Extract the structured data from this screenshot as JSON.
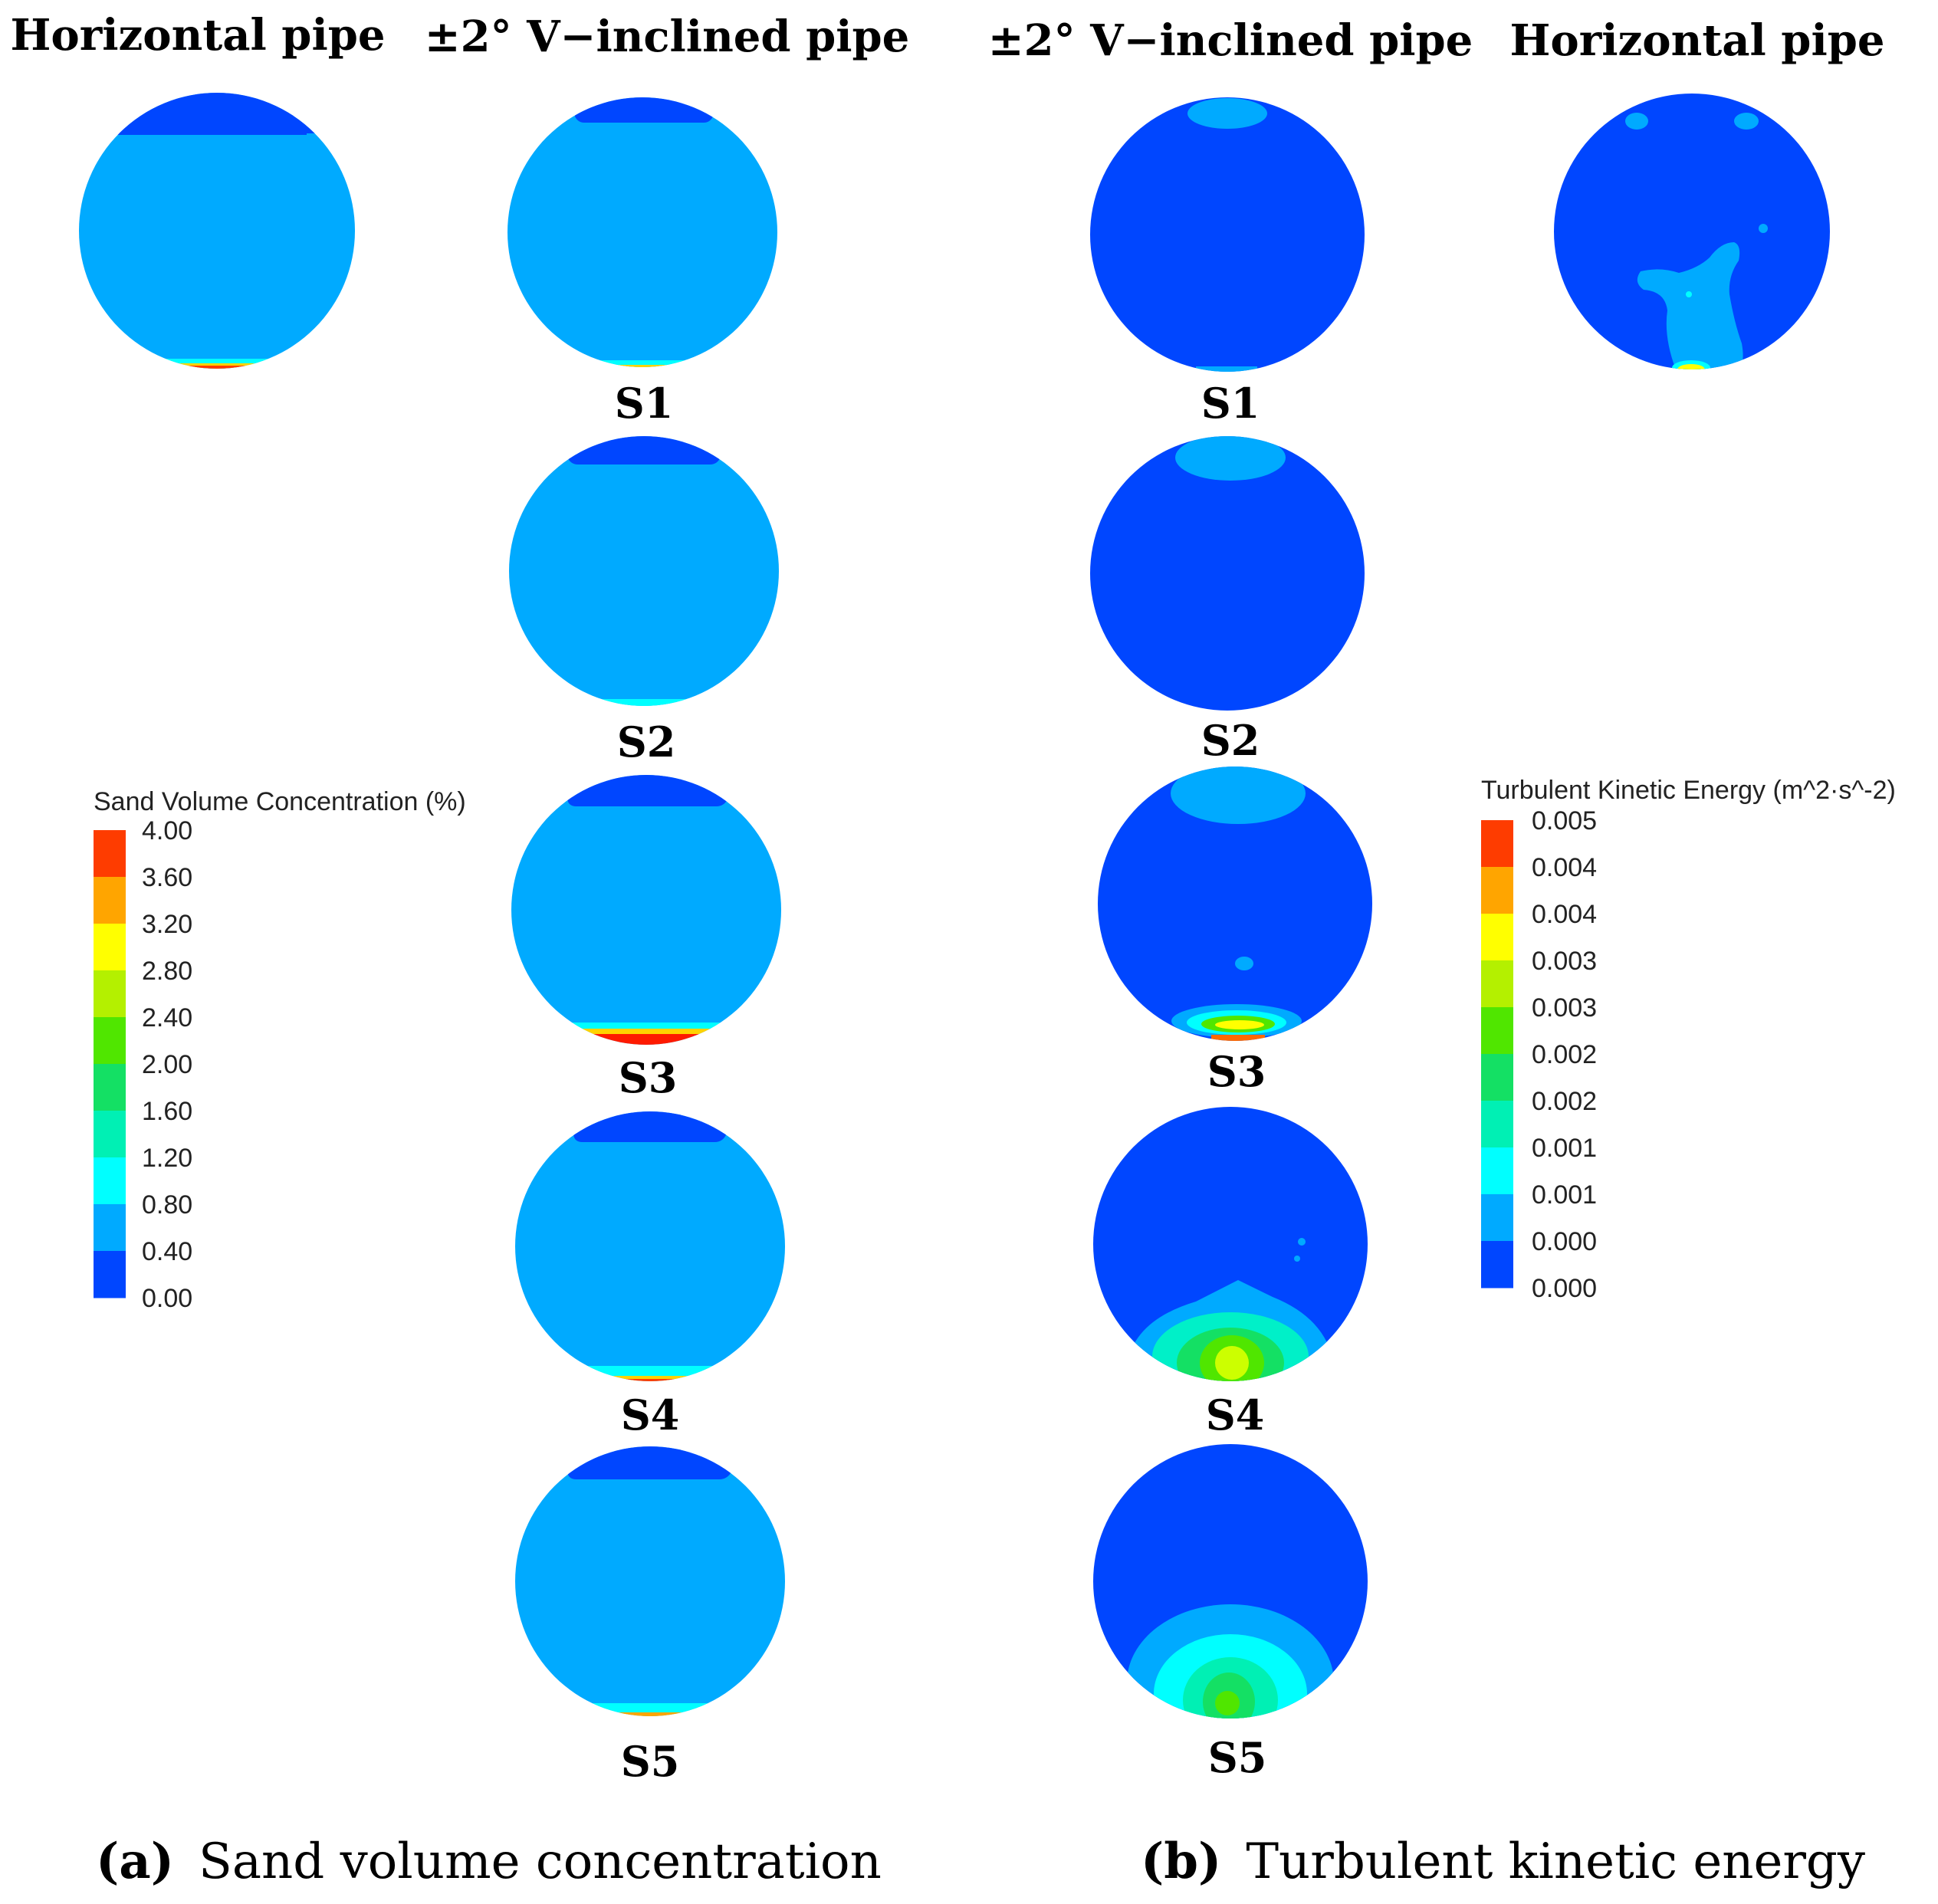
{
  "headers": {
    "sand_horizontal": "Horizontal pipe",
    "sand_inclined": "±2° V−inclined pipe",
    "tke_inclined": "±2° V−inclined pipe",
    "tke_horizontal": "Horizontal pipe"
  },
  "sections": [
    "S1",
    "S2",
    "S3",
    "S4",
    "S5"
  ],
  "sand_legend": {
    "title": "Sand Volume Concentration (%)",
    "ticks": [
      "4.00",
      "3.60",
      "3.20",
      "2.80",
      "2.40",
      "2.00",
      "1.60",
      "1.20",
      "0.80",
      "0.40",
      "0.00"
    ],
    "colors": [
      "#fe3c00",
      "#ffa500",
      "#ffff00",
      "#b4f000",
      "#50e600",
      "#14e064",
      "#00f0b4",
      "#00ffff",
      "#00aaff",
      "#0046ff"
    ]
  },
  "tke_legend": {
    "title": "Turbulent Kinetic Energy (m^2·s^-2)",
    "ticks": [
      "0.005",
      "0.004",
      "0.004",
      "0.003",
      "0.003",
      "0.002",
      "0.002",
      "0.001",
      "0.001",
      "0.000",
      "0.000"
    ],
    "colors": [
      "#fe3c00",
      "#ffa500",
      "#ffff00",
      "#b4f000",
      "#50e600",
      "#14e064",
      "#00f0b4",
      "#00ffff",
      "#00aaff",
      "#0046ff"
    ]
  },
  "captions": {
    "a_letter": "(a)",
    "a_text": "Sand volume concentration",
    "b_letter": "(b)",
    "b_text": "Turbulent kinetic energy"
  }
}
